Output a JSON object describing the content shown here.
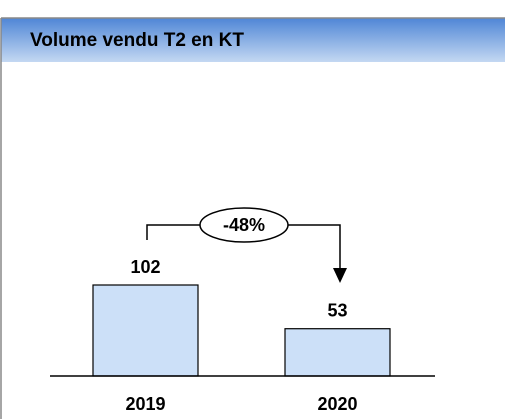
{
  "chart_data": {
    "type": "bar",
    "title": "Volume vendu T2 en KT",
    "categories": [
      "2019",
      "2020"
    ],
    "values": [
      102,
      53
    ],
    "color": "#cce0f8",
    "annotation": "-48%"
  }
}
